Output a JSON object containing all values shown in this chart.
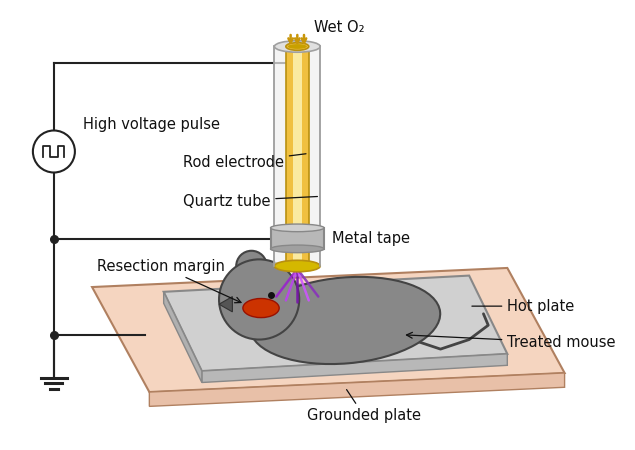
{
  "bg_color": "#ffffff",
  "tube_color": "#f0c040",
  "tube_inner_color": "#faeaa0",
  "tube_outline_color": "#b89010",
  "tube_outer_color": "#e8e8e8",
  "tube_outer_outline": "#a0a0a0",
  "metal_tape_color": "#b8b8b8",
  "metal_tape_outline": "#888888",
  "hot_plate_color": "#f5d5c0",
  "hot_plate_outline": "#b08060",
  "grey_plate_color": "#d0d0d0",
  "grey_plate_outline": "#888888",
  "mouse_body_color": "#888888",
  "mouse_outline_color": "#444444",
  "plasma_colors": [
    "#9922cc",
    "#bb44ee",
    "#7711aa",
    "#cc55ff",
    "#8833bb"
  ],
  "wound_color": "#cc3300",
  "circuit_color": "#222222",
  "arrow_color": "#c8960a",
  "label_color": "#111111",
  "labels": {
    "wet_o2": "Wet O₂",
    "high_voltage": "High voltage pulse",
    "rod_electrode": "Rod electrode",
    "quartz_tube": "Quartz tube",
    "metal_tape": "Metal tape",
    "resection_margin": "Resection margin",
    "hot_plate": "Hot plate",
    "treated_mouse": "Treated mouse",
    "grounded_plate": "Grounded plate"
  },
  "figsize": [
    6.35,
    4.5
  ],
  "dpi": 100
}
